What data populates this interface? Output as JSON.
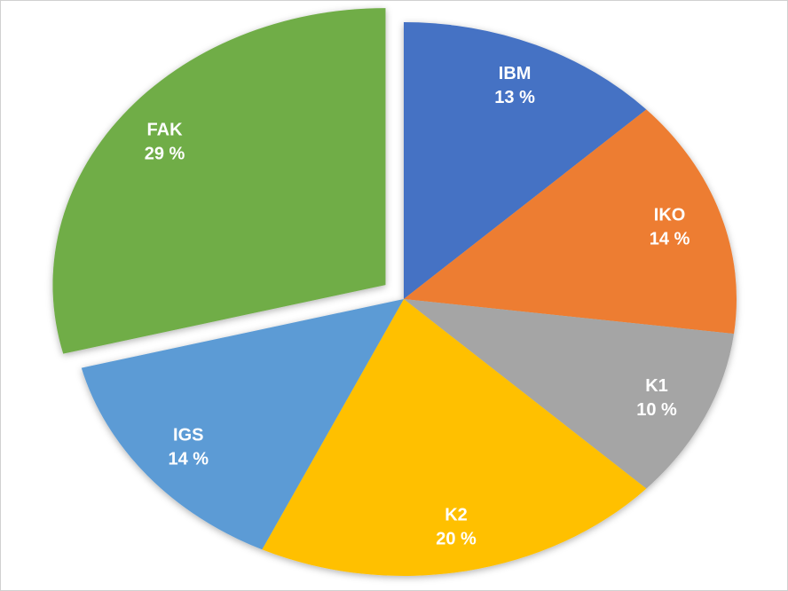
{
  "chart_data": {
    "type": "pie",
    "categories": [
      "IBM",
      "IKO",
      "K1",
      "K2",
      "IGS",
      "FAK"
    ],
    "values": [
      13,
      14,
      10,
      20,
      14,
      29
    ],
    "value_labels": [
      "13 %",
      "14 %",
      "10 %",
      "20 %",
      "14 %",
      "29 %"
    ],
    "colors": [
      "#4472c4",
      "#ed7d31",
      "#a5a5a5",
      "#ffc000",
      "#5b9bd5",
      "#70ad47"
    ],
    "explode": [
      5
    ]
  }
}
